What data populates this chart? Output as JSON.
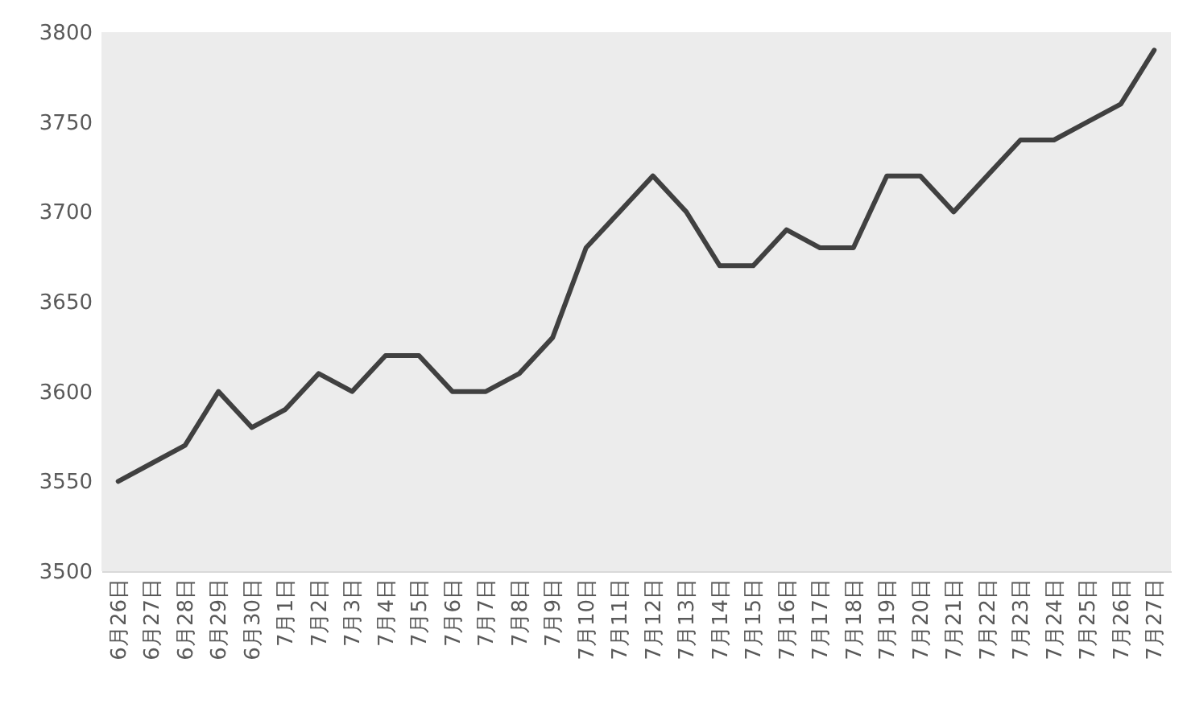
{
  "chart_data": {
    "type": "line",
    "categories": [
      "6月26日",
      "6月27日",
      "6月28日",
      "6月29日",
      "6月30日",
      "7月1日",
      "7月2日",
      "7月3日",
      "7月4日",
      "7月5日",
      "7月6日",
      "7月7日",
      "7月8日",
      "7月9日",
      "7月10日",
      "7月11日",
      "7月12日",
      "7月13日",
      "7月14日",
      "7月15日",
      "7月16日",
      "7月17日",
      "7月18日",
      "7月19日",
      "7月20日",
      "7月21日",
      "7月22日",
      "7月23日",
      "7月24日",
      "7月25日",
      "7月26日",
      "7月27日"
    ],
    "series": [
      {
        "color": "#404040",
        "values": [
          3550,
          3560,
          3570,
          3600,
          3580,
          3590,
          3610,
          3600,
          3620,
          3620,
          3600,
          3600,
          3610,
          3630,
          3680,
          3700,
          3720,
          3700,
          3670,
          3670,
          3690,
          3680,
          3680,
          3720,
          3720,
          3700,
          3720,
          3740,
          3740,
          3750,
          3760,
          3790
        ]
      }
    ],
    "ylim": [
      3500,
      3800
    ],
    "yticks": [
      3500,
      3550,
      3600,
      3650,
      3700,
      3750,
      3800
    ],
    "grid": false,
    "marker": "none",
    "line_style": "solid"
  }
}
